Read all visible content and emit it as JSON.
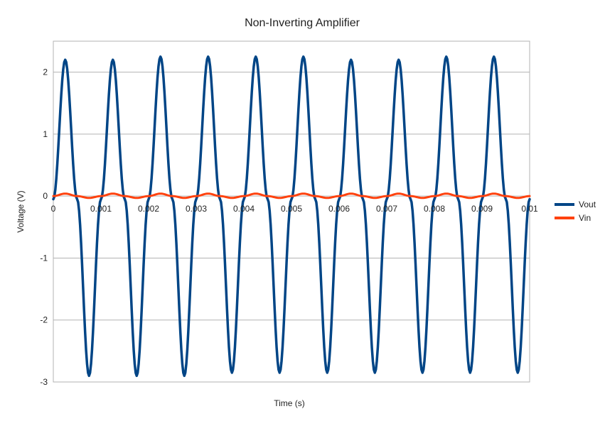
{
  "chart_data": {
    "type": "line",
    "title": "Non-Inverting Amplifier",
    "xlabel": "Time (s)",
    "ylabel": "Voltage (V)",
    "xlim": [
      0,
      0.01
    ],
    "ylim": [
      -3,
      2.5
    ],
    "x_ticks": [
      "0",
      "0.001",
      "0.002",
      "0.003",
      "0.004",
      "0.005",
      "0.006",
      "0.007",
      "0.008",
      "0.009",
      "0.01"
    ],
    "y_ticks": [
      "-3",
      "-2",
      "-1",
      "0",
      "1",
      "2"
    ],
    "grid": true,
    "legend_position": "right",
    "series": [
      {
        "name": "Vout",
        "color": "#004586",
        "x": [
          0,
          0.00025,
          0.0005,
          0.00075,
          0.001,
          0.00125,
          0.0015,
          0.00175,
          0.002,
          0.00225,
          0.0025,
          0.00275,
          0.003,
          0.00325,
          0.0035,
          0.00375,
          0.004,
          0.00425,
          0.0045,
          0.00475,
          0.005,
          0.00525,
          0.0055,
          0.00575,
          0.006,
          0.00625,
          0.0065,
          0.00675,
          0.007,
          0.00725,
          0.0075,
          0.00775,
          0.008,
          0.00825,
          0.0085,
          0.00875,
          0.009,
          0.00925,
          0.0095,
          0.00975,
          0.01
        ],
        "values": [
          -0.05,
          2.2,
          -0.05,
          -2.9,
          -0.05,
          2.2,
          -0.05,
          -2.9,
          -0.05,
          2.25,
          -0.05,
          -2.9,
          -0.05,
          2.25,
          -0.05,
          -2.85,
          -0.05,
          2.25,
          -0.05,
          -2.85,
          -0.05,
          2.25,
          -0.05,
          -2.85,
          -0.05,
          2.2,
          -0.05,
          -2.85,
          -0.05,
          2.2,
          -0.05,
          -2.85,
          -0.05,
          2.25,
          -0.05,
          -2.85,
          -0.05,
          2.25,
          -0.05,
          -2.85,
          -0.05
        ]
      },
      {
        "name": "Vin",
        "color": "#ff420e",
        "x": [
          0,
          0.00025,
          0.0005,
          0.00075,
          0.001,
          0.00125,
          0.0015,
          0.00175,
          0.002,
          0.00225,
          0.0025,
          0.00275,
          0.003,
          0.00325,
          0.0035,
          0.00375,
          0.004,
          0.00425,
          0.0045,
          0.00475,
          0.005,
          0.00525,
          0.0055,
          0.00575,
          0.006,
          0.00625,
          0.0065,
          0.00675,
          0.007,
          0.00725,
          0.0075,
          0.00775,
          0.008,
          0.00825,
          0.0085,
          0.00875,
          0.009,
          0.00925,
          0.0095,
          0.00975,
          0.01
        ],
        "values": [
          0,
          0.04,
          0,
          -0.03,
          0,
          0.04,
          0,
          -0.03,
          0,
          0.04,
          0,
          -0.03,
          0,
          0.04,
          0,
          -0.03,
          0,
          0.04,
          0,
          -0.03,
          0,
          0.04,
          0,
          -0.03,
          0,
          0.04,
          0,
          -0.03,
          0,
          0.04,
          0,
          -0.03,
          0,
          0.04,
          0,
          -0.03,
          0,
          0.04,
          0,
          -0.03,
          0
        ]
      }
    ]
  }
}
